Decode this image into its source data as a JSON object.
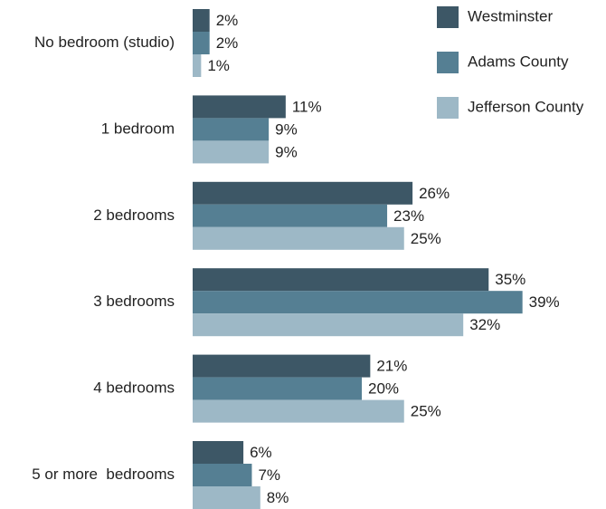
{
  "chart_data": {
    "type": "hbar",
    "categories": [
      "No bedroom (studio)",
      "1 bedroom",
      "2 bedrooms",
      "3 bedrooms",
      "4 bedrooms",
      "5 or more  bedrooms"
    ],
    "series": [
      {
        "name": "Westminster",
        "color": "#3d5766",
        "values": [
          2,
          11,
          26,
          35,
          21,
          6
        ],
        "value_labels": [
          "2%",
          "11%",
          "26%",
          "35%",
          "21%",
          "6%"
        ]
      },
      {
        "name": "Adams County",
        "color": "#557f93",
        "values": [
          2,
          9,
          23,
          39,
          20,
          7
        ],
        "value_labels": [
          "2%",
          "9%",
          "23%",
          "39%",
          "20%",
          "7%"
        ]
      },
      {
        "name": "Jefferson County",
        "color": "#9db8c6",
        "values": [
          1,
          9,
          25,
          32,
          25,
          8
        ],
        "value_labels": [
          "1%",
          "9%",
          "25%",
          "32%",
          "25%",
          "8%"
        ]
      }
    ],
    "xlim": [
      0,
      40
    ],
    "legend": "top-right"
  }
}
